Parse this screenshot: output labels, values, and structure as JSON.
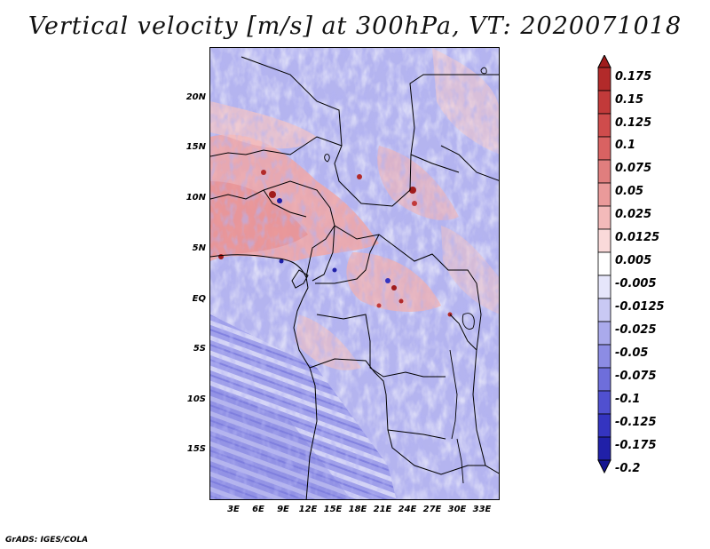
{
  "title": "Vertical velocity [m/s] at 300hPa, VT: 2020071018",
  "footer": "GrADS: IGES/COLA",
  "map": {
    "lat_range": [
      -20,
      25
    ],
    "lon_range": [
      0,
      35
    ],
    "lat_ticks": [
      "20N",
      "15N",
      "10N",
      "5N",
      "EQ",
      "5S",
      "10S",
      "15S"
    ],
    "lon_ticks": [
      "3E",
      "6E",
      "9E",
      "12E",
      "15E",
      "18E",
      "21E",
      "24E",
      "27E",
      "30E",
      "33E"
    ]
  },
  "colorbar": {
    "labels": [
      "0.175",
      "0.15",
      "0.125",
      "0.1",
      "0.075",
      "0.05",
      "0.025",
      "0.0125",
      "0.005",
      "-0.005",
      "-0.0125",
      "-0.025",
      "-0.05",
      "-0.075",
      "-0.1",
      "-0.125",
      "-0.175",
      "-0.2"
    ],
    "colors": [
      "#a01c1c",
      "#b22a2a",
      "#c23a3a",
      "#cf4c4c",
      "#d96262",
      "#e07e7e",
      "#ea9a9a",
      "#f3baba",
      "#fadada",
      "#ffffff",
      "#e6e6fb",
      "#c9c9f4",
      "#aaaaec",
      "#8c8ce4",
      "#6e6edb",
      "#5050d0",
      "#3434c0",
      "#2020a8",
      "#141490"
    ]
  }
}
